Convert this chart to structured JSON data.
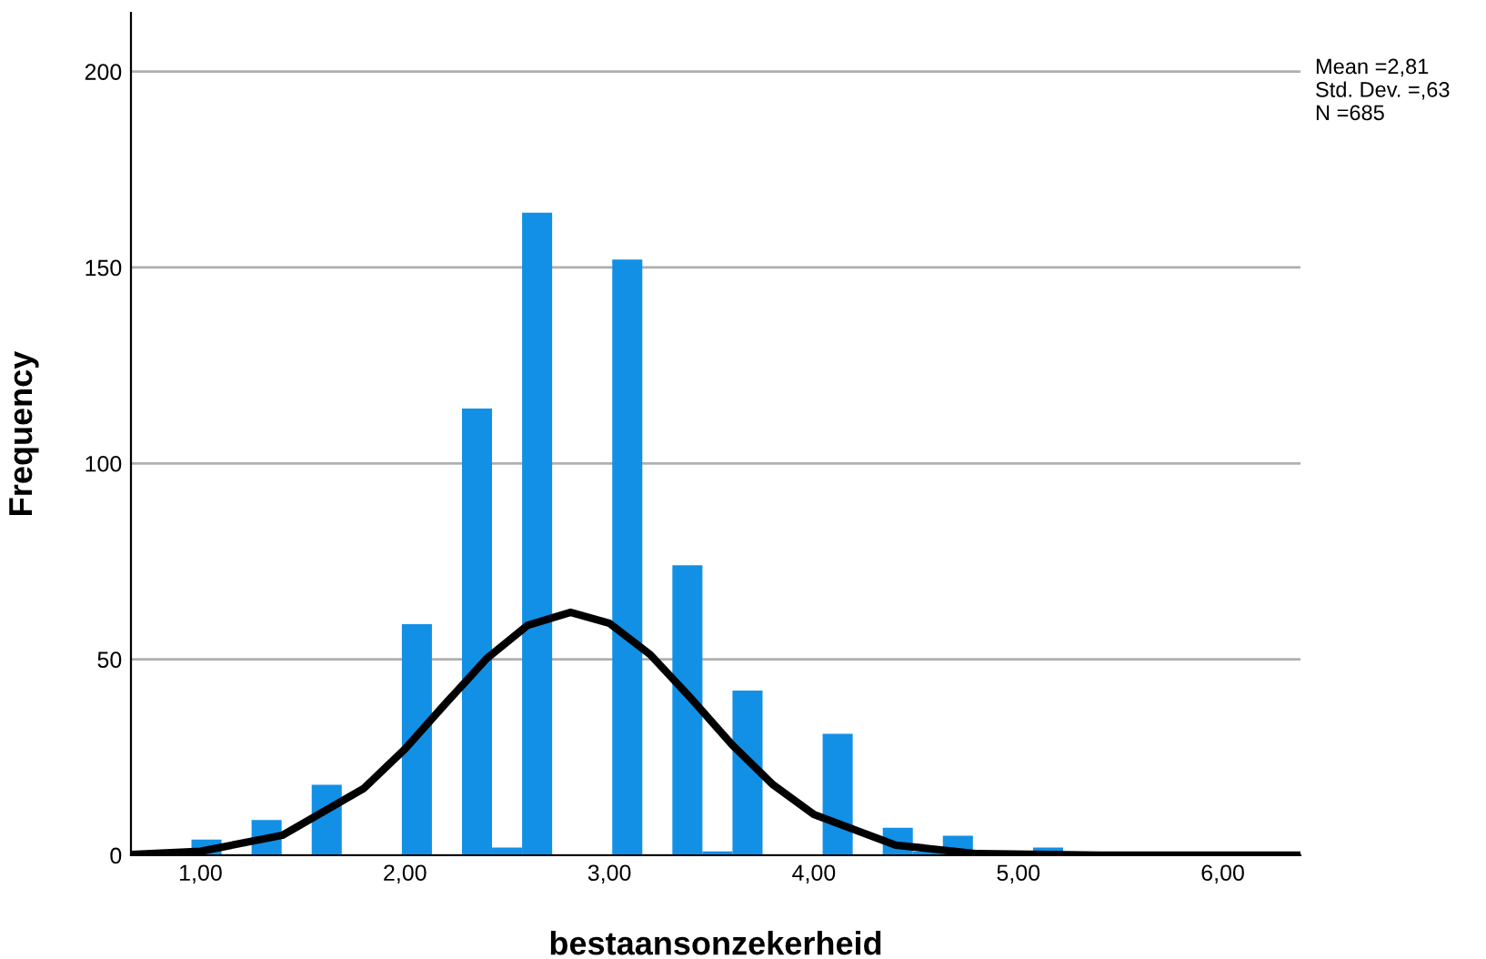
{
  "chart_data": {
    "type": "histogram",
    "xlabel": "bestaansonzekerheid",
    "ylabel": "Frequency",
    "bins": [
      0.956,
      1.103,
      1.25,
      1.397,
      1.544,
      1.691,
      1.838,
      1.985,
      2.132,
      2.279,
      2.426,
      2.573,
      2.72,
      2.867,
      3.014,
      3.161,
      3.308,
      3.455,
      3.602,
      3.749,
      3.896,
      4.043,
      4.19,
      4.337,
      4.484,
      4.631,
      4.778,
      4.925,
      5.072,
      5.219
    ],
    "values": [
      4,
      0,
      9,
      0,
      18,
      0,
      0,
      59,
      0,
      114,
      2,
      164,
      0,
      0,
      152,
      0,
      74,
      1,
      42,
      0,
      0,
      31,
      0,
      7,
      1,
      5,
      0,
      0,
      2
    ],
    "color": "#1290e6",
    "series": [
      {
        "type": "line",
        "color": "#000000",
        "x": [
          0.66,
          1.0,
          1.4,
          1.8,
          2.0,
          2.2,
          2.4,
          2.6,
          2.81,
          3.0,
          3.2,
          3.4,
          3.6,
          3.8,
          4.0,
          4.4,
          4.8,
          5.4,
          6.38
        ],
        "values": [
          0.2,
          1.0,
          5.1,
          17.1,
          27.1,
          38.8,
          50.2,
          58.7,
          62,
          59.2,
          51.2,
          40.0,
          28.2,
          18.0,
          10.4,
          2.6,
          0.4,
          0,
          0
        ]
      }
    ],
    "marker": "none",
    "line_style": "solid",
    "xlim": [
      0.66,
      6.38
    ],
    "ylim": [
      0,
      215
    ],
    "xticks": [
      {
        "value": 1,
        "label": "1,00"
      },
      {
        "value": 2,
        "label": "2,00"
      },
      {
        "value": 3,
        "label": "3,00"
      },
      {
        "value": 4,
        "label": "4,00"
      },
      {
        "value": 5,
        "label": "5,00"
      },
      {
        "value": 6,
        "label": "6,00"
      }
    ],
    "yticks": [
      0,
      50,
      100,
      150,
      200
    ],
    "grid": "y",
    "annotations": [
      "Mean =2,81\nStd. Dev. =,63\nN =685"
    ]
  }
}
